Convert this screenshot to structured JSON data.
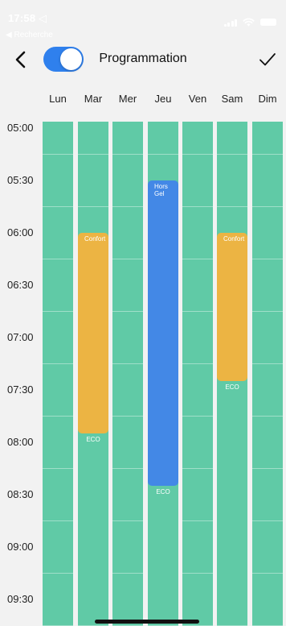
{
  "status": {
    "time": "17:58 ◁",
    "back_app": "◀ Recherche"
  },
  "nav": {
    "title": "Programmation",
    "toggle_on": true,
    "back_icon": "chevron-left-icon",
    "done_icon": "checkmark-icon"
  },
  "days": [
    "Lun",
    "Mar",
    "Mer",
    "Jeu",
    "Ven",
    "Sam",
    "Dim"
  ],
  "times": [
    "05:00",
    "05:30",
    "06:00",
    "06:30",
    "07:00",
    "07:30",
    "08:00",
    "08:30",
    "09:00",
    "09:30"
  ],
  "modes": {
    "confort": "Confort",
    "eco": "ECO",
    "hors_gel": "Hors\nGel"
  },
  "colors": {
    "eco": "#60caa6",
    "confort": "#ecb443",
    "hors_gel": "#4388e6",
    "toggle": "#2f80ed"
  },
  "schedule": [
    {
      "day": "Lun",
      "blocks": [
        {
          "mode": "eco",
          "start": "05:00",
          "end": "09:45",
          "show_label": false
        }
      ]
    },
    {
      "day": "Mar",
      "blocks": [
        {
          "mode": "eco",
          "start": "05:00",
          "end": "06:00",
          "show_label": false
        },
        {
          "mode": "confort",
          "start": "06:00",
          "end": "07:55",
          "show_label": true
        },
        {
          "mode": "eco",
          "start": "07:55",
          "end": "09:45",
          "show_label": true
        }
      ]
    },
    {
      "day": "Mer",
      "blocks": [
        {
          "mode": "eco",
          "start": "05:00",
          "end": "09:45",
          "show_label": false
        }
      ]
    },
    {
      "day": "Jeu",
      "blocks": [
        {
          "mode": "eco",
          "start": "05:00",
          "end": "05:30",
          "show_label": false
        },
        {
          "mode": "hors_gel",
          "start": "05:30",
          "end": "08:25",
          "show_label": true
        },
        {
          "mode": "eco",
          "start": "08:25",
          "end": "09:45",
          "show_label": true
        }
      ]
    },
    {
      "day": "Ven",
      "blocks": [
        {
          "mode": "eco",
          "start": "05:00",
          "end": "09:45",
          "show_label": false
        }
      ]
    },
    {
      "day": "Sam",
      "blocks": [
        {
          "mode": "eco",
          "start": "05:00",
          "end": "06:00",
          "show_label": false
        },
        {
          "mode": "confort",
          "start": "06:00",
          "end": "07:25",
          "show_label": true
        },
        {
          "mode": "eco",
          "start": "07:25",
          "end": "09:45",
          "show_label": true
        }
      ]
    },
    {
      "day": "Dim",
      "blocks": [
        {
          "mode": "eco",
          "start": "05:00",
          "end": "09:45",
          "show_label": false
        }
      ]
    }
  ]
}
